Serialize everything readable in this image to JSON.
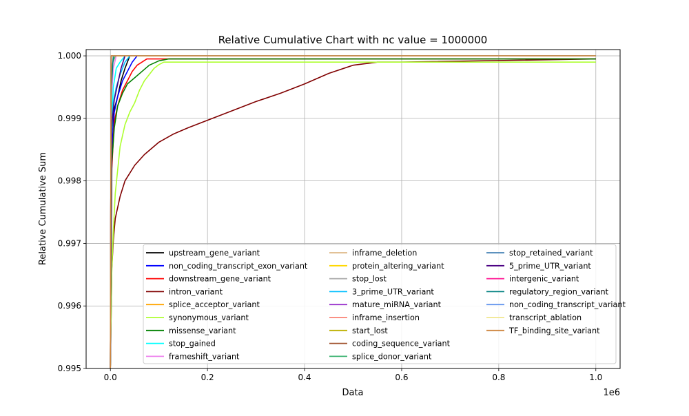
{
  "chart_data": {
    "type": "line",
    "title": "Relative Cumulative Chart with nc value = 1000000",
    "xlabel": "Data",
    "ylabel": "Relative Cumulative Sum",
    "x_offset_label": "1e6",
    "xlim": [
      -50000,
      1050000
    ],
    "ylim": [
      0.995,
      1.0001
    ],
    "x_ticks": [
      0,
      200000,
      400000,
      600000,
      800000,
      1000000
    ],
    "x_tick_labels": [
      "0.0",
      "0.2",
      "0.4",
      "0.6",
      "0.8",
      "1.0"
    ],
    "y_ticks": [
      0.995,
      0.996,
      0.997,
      0.998,
      0.999,
      1.0
    ],
    "y_tick_labels": [
      "0.995",
      "0.996",
      "0.997",
      "0.998",
      "0.999",
      "1.000"
    ],
    "grid": true,
    "legend_position": "lower-right",
    "legend_columns": 3,
    "series": [
      {
        "name": "upstream_gene_variant",
        "color": "#000000",
        "x": [
          0,
          3000,
          8000,
          15000,
          22000,
          30000,
          40000,
          1000000
        ],
        "y": [
          0.995,
          0.9988,
          0.99915,
          0.99935,
          0.9996,
          0.9998,
          1.0,
          1.0
        ]
      },
      {
        "name": "non_coding_transcript_exon_variant",
        "color": "#0000ff",
        "x": [
          0,
          3000,
          8000,
          15000,
          25000,
          35000,
          45000,
          55000,
          1000000
        ],
        "y": [
          0.995,
          0.9985,
          0.9991,
          0.99935,
          0.9996,
          0.99975,
          0.9999,
          1.0,
          1.0
        ]
      },
      {
        "name": "downstream_gene_variant",
        "color": "#ff0000",
        "x": [
          0,
          3000,
          8000,
          15000,
          25000,
          35000,
          45000,
          55000,
          65000,
          75000,
          1000000
        ],
        "y": [
          0.995,
          0.9982,
          0.99895,
          0.9992,
          0.99945,
          0.9996,
          0.99975,
          0.99985,
          0.9999,
          0.99995,
          0.99995
        ]
      },
      {
        "name": "intron_variant",
        "color": "#800000",
        "x": [
          0,
          3000,
          6000,
          10000,
          20000,
          30000,
          50000,
          70000,
          100000,
          130000,
          160000,
          200000,
          250000,
          300000,
          350000,
          400000,
          450000,
          500000,
          550000,
          600000,
          1000000
        ],
        "y": [
          0.995,
          0.9966,
          0.99705,
          0.9974,
          0.99775,
          0.998,
          0.99825,
          0.99842,
          0.99862,
          0.99875,
          0.99885,
          0.99897,
          0.99912,
          0.99927,
          0.9994,
          0.99955,
          0.99972,
          0.99985,
          0.9999,
          0.9999,
          0.99995
        ]
      },
      {
        "name": "splice_acceptor_variant",
        "color": "#ffa500",
        "x": [
          0,
          2000,
          5000,
          10000,
          1000000
        ],
        "y": [
          0.995,
          0.99975,
          0.9999,
          1.0,
          1.0
        ]
      },
      {
        "name": "synonymous_variant",
        "color": "#adff2f",
        "x": [
          0,
          3000,
          6000,
          10000,
          20000,
          30000,
          40000,
          50000,
          60000,
          70000,
          80000,
          90000,
          100000,
          110000,
          120000,
          140000,
          1000000
        ],
        "y": [
          0.995,
          0.9966,
          0.9972,
          0.9978,
          0.99855,
          0.9989,
          0.9991,
          0.99925,
          0.99945,
          0.9996,
          0.9997,
          0.9998,
          0.99986,
          0.9999,
          0.9999,
          0.9999,
          0.9999
        ]
      },
      {
        "name": "missense_variant",
        "color": "#008000",
        "x": [
          0,
          3000,
          8000,
          15000,
          25000,
          35000,
          50000,
          65000,
          80000,
          100000,
          120000,
          1000000
        ],
        "y": [
          0.995,
          0.9983,
          0.99885,
          0.9992,
          0.9994,
          0.99955,
          0.99965,
          0.99975,
          0.99985,
          0.99992,
          0.99995,
          0.99995
        ]
      },
      {
        "name": "stop_gained",
        "color": "#00ffff",
        "x": [
          0,
          2000,
          6000,
          12000,
          20000,
          30000,
          1000000
        ],
        "y": [
          0.995,
          0.9988,
          0.9995,
          0.9998,
          0.9999,
          1.0,
          1.0
        ]
      },
      {
        "name": "frameshift_variant",
        "color": "#ee82ee",
        "x": [
          0,
          2000,
          6000,
          12000,
          1000000
        ],
        "y": [
          0.995,
          0.9993,
          0.9998,
          1.0,
          1.0
        ]
      },
      {
        "name": "inframe_deletion",
        "color": "#deb887",
        "x": [
          0,
          2000,
          6000,
          1000000
        ],
        "y": [
          0.995,
          0.9996,
          1.0,
          1.0
        ]
      },
      {
        "name": "protein_altering_variant",
        "color": "#ffd700",
        "x": [
          0,
          1500,
          1000000
        ],
        "y": [
          0.995,
          1.0,
          1.0
        ]
      },
      {
        "name": "stop_lost",
        "color": "#a9a9a9",
        "x": [
          0,
          1500,
          1000000
        ],
        "y": [
          0.995,
          1.0,
          1.0
        ]
      },
      {
        "name": "3_prime_UTR_variant",
        "color": "#00bfff",
        "x": [
          0,
          2000,
          6000,
          12000,
          20000,
          30000,
          40000,
          1000000
        ],
        "y": [
          0.995,
          0.9986,
          0.99925,
          0.9995,
          0.9997,
          0.9999,
          1.0,
          1.0
        ]
      },
      {
        "name": "mature_miRNA_variant",
        "color": "#9932cc",
        "x": [
          0,
          1500,
          1000000
        ],
        "y": [
          0.995,
          1.0,
          1.0
        ]
      },
      {
        "name": "inframe_insertion",
        "color": "#fa8072",
        "x": [
          0,
          1500,
          1000000
        ],
        "y": [
          0.995,
          1.0,
          1.0
        ]
      },
      {
        "name": "start_lost",
        "color": "#bdb000",
        "x": [
          0,
          1500,
          1000000
        ],
        "y": [
          0.995,
          1.0,
          1.0
        ]
      },
      {
        "name": "coding_sequence_variant",
        "color": "#a0522d",
        "x": [
          0,
          1500,
          1000000
        ],
        "y": [
          0.995,
          1.0,
          1.0
        ]
      },
      {
        "name": "splice_donor_variant",
        "color": "#3cb371",
        "x": [
          0,
          2000,
          5000,
          10000,
          1000000
        ],
        "y": [
          0.995,
          0.9997,
          0.9999,
          1.0,
          1.0
        ]
      },
      {
        "name": "stop_retained_variant",
        "color": "#4682b4",
        "x": [
          0,
          1500,
          1000000
        ],
        "y": [
          0.995,
          1.0,
          1.0
        ]
      },
      {
        "name": "5_prime_UTR_variant",
        "color": "#4b0082",
        "x": [
          0,
          3000,
          8000,
          15000,
          22000,
          30000,
          1000000
        ],
        "y": [
          0.995,
          0.9989,
          0.9993,
          0.99955,
          0.9998,
          1.0,
          1.0
        ]
      },
      {
        "name": "intergenic_variant",
        "color": "#ff1493",
        "x": [
          0,
          1500,
          1000000
        ],
        "y": [
          0.995,
          1.0,
          1.0
        ]
      },
      {
        "name": "regulatory_region_variant",
        "color": "#008080",
        "x": [
          0,
          2000,
          6000,
          1000000
        ],
        "y": [
          0.995,
          0.9995,
          1.0,
          1.0
        ]
      },
      {
        "name": "non_coding_transcript_variant",
        "color": "#6495ed",
        "x": [
          0,
          1500,
          1000000
        ],
        "y": [
          0.995,
          1.0,
          1.0
        ]
      },
      {
        "name": "transcript_ablation",
        "color": "#f0e68c",
        "x": [
          0,
          1500,
          1000000
        ],
        "y": [
          0.995,
          1.0,
          1.0
        ]
      },
      {
        "name": "TF_binding_site_variant",
        "color": "#cd853f",
        "x": [
          0,
          1500,
          1000000
        ],
        "y": [
          0.995,
          1.0,
          1.0
        ]
      }
    ]
  }
}
